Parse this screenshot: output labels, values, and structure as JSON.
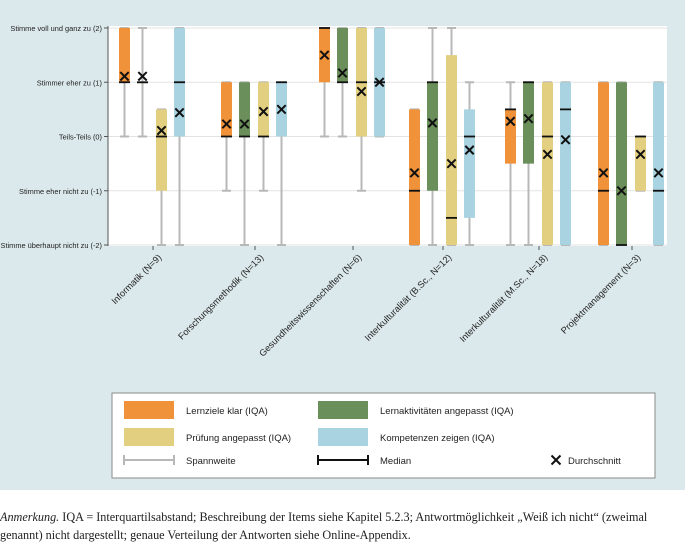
{
  "chart_data": {
    "type": "boxplot",
    "y_categories": [
      {
        "value": 2,
        "label": "Stimme voll und ganz zu (2)"
      },
      {
        "value": 1,
        "label": "Stimmer eher zu (1)"
      },
      {
        "value": 0,
        "label": "Teils-Teils (0)"
      },
      {
        "value": -1,
        "label": "Stimme eher nicht zu (-1)"
      },
      {
        "value": -2,
        "label": "Stimme überhaupt nicht zu (-2)"
      }
    ],
    "ylim": [
      -2,
      2
    ],
    "categories": [
      "Informatik (N=9)",
      "Forschungsmethodik (N=13)",
      "Gesundheitswissenschaften (N=6)",
      "Interkulturalität (B.Sc., N=12)",
      "Interkulturalität (M.Sc., N=18)",
      "Projektmanagement (N=3)"
    ],
    "series": [
      {
        "name": "Lernziele klar (IQA)",
        "color": "#f0923a",
        "boxes": [
          {
            "whisker": [
              0,
              2
            ],
            "q1": 1,
            "q3": 2,
            "median": 1,
            "mean": 1.11
          },
          {
            "whisker": [
              -1,
              1
            ],
            "q1": 0,
            "q3": 1,
            "median": 0,
            "mean": 0.23
          },
          {
            "whisker": [
              0,
              2
            ],
            "q1": 1,
            "q3": 2,
            "median": 2,
            "mean": 1.5
          },
          {
            "whisker": [
              -2,
              0.5
            ],
            "q1": -2,
            "q3": 0.5,
            "median": -1,
            "mean": -0.67
          },
          {
            "whisker": [
              -2,
              1
            ],
            "q1": -0.5,
            "q3": 0.5,
            "median": 0.5,
            "mean": 0.28
          },
          {
            "whisker": [
              -2,
              1
            ],
            "q1": -2,
            "q3": 1,
            "median": -1,
            "mean": -0.67
          }
        ]
      },
      {
        "name": "Lernaktivitäten angepasst (IQA)",
        "color": "#6a8f5a",
        "boxes": [
          {
            "whisker": [
              0,
              2
            ],
            "q1": 1,
            "q3": 1,
            "median": 1,
            "mean": 1.11
          },
          {
            "whisker": [
              -2,
              1
            ],
            "q1": 0,
            "q3": 1,
            "median": 0,
            "mean": 0.23
          },
          {
            "whisker": [
              0,
              2
            ],
            "q1": 1,
            "q3": 2,
            "median": 1,
            "mean": 1.17
          },
          {
            "whisker": [
              -2,
              2
            ],
            "q1": -1,
            "q3": 1,
            "median": 1,
            "mean": 0.25
          },
          {
            "whisker": [
              -2,
              1
            ],
            "q1": -0.5,
            "q3": 1,
            "median": 1,
            "mean": 0.33
          },
          {
            "whisker": [
              -2,
              1
            ],
            "q1": -2,
            "q3": 1,
            "median": -2,
            "mean": -1
          }
        ]
      },
      {
        "name": "Prüfung angepasst (IQA)",
        "color": "#e3cf80",
        "boxes": [
          {
            "whisker": [
              -2,
              0.5
            ],
            "q1": -1,
            "q3": 0.5,
            "median": 0,
            "mean": 0.11
          },
          {
            "whisker": [
              -1,
              1
            ],
            "q1": 0,
            "q3": 1,
            "median": 0,
            "mean": 0.46
          },
          {
            "whisker": [
              -1,
              2
            ],
            "q1": 0,
            "q3": 2,
            "median": 1,
            "mean": 0.83
          },
          {
            "whisker": [
              -2,
              2
            ],
            "q1": -2,
            "q3": 1.5,
            "median": -1.5,
            "mean": -0.5
          },
          {
            "whisker": [
              -2,
              1
            ],
            "q1": -2,
            "q3": 1,
            "median": 0,
            "mean": -0.33
          },
          {
            "whisker": [
              -1,
              0
            ],
            "q1": -1,
            "q3": 0,
            "median": 0,
            "mean": -0.33
          }
        ]
      },
      {
        "name": "Kompetenzen zeigen (IQA)",
        "color": "#a9d3e0",
        "boxes": [
          {
            "whisker": [
              -2,
              2
            ],
            "q1": 0,
            "q3": 2,
            "median": 1,
            "mean": 0.44
          },
          {
            "whisker": [
              -2,
              1
            ],
            "q1": 0,
            "q3": 1,
            "median": 1,
            "mean": 0.5
          },
          {
            "whisker": [
              0,
              2
            ],
            "q1": 0,
            "q3": 2,
            "median": 1,
            "mean": 1
          },
          {
            "whisker": [
              -2,
              1
            ],
            "q1": -1.5,
            "q3": 0.5,
            "median": 0,
            "mean": -0.25
          },
          {
            "whisker": [
              -2,
              1
            ],
            "q1": -2,
            "q3": 1,
            "median": 0.5,
            "mean": -0.06
          },
          {
            "whisker": [
              -2,
              1
            ],
            "q1": -2,
            "q3": 1,
            "median": -1,
            "mean": -0.67
          }
        ]
      }
    ],
    "legend": {
      "items": [
        "Lernziele klar (IQA)",
        "Lernaktivitäten angepasst (IQA)",
        "Prüfung angepasst (IQA)",
        "Kompetenzen zeigen (IQA)"
      ],
      "whisker_label": "Spannweite",
      "median_label": "Median",
      "mean_label": "Durchschnitt",
      "placement": "bottom"
    }
  },
  "caption": {
    "lead": "Anmerkung.",
    "text": " IQA = Interquartilsabstand; Beschreibung der Items siehe Kapitel 5.2.3; Antwortmöglichkeit „Weiß ich nicht“ (zweimal genannt) nicht dargestellt; genaue Verteilung der Antworten siehe Online-Appendix."
  }
}
